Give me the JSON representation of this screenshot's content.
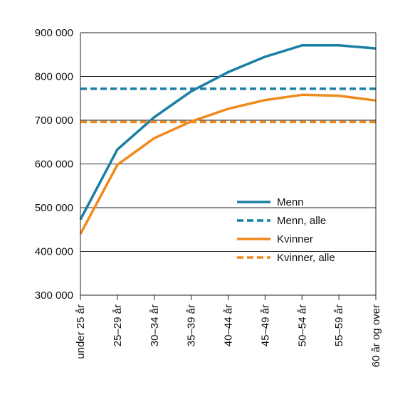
{
  "chart_data": {
    "type": "line",
    "title": "",
    "xlabel": "",
    "ylabel": "",
    "categories": [
      "under 25 år",
      "25–29 år",
      "30–34 år",
      "35–39 år",
      "40–44 år",
      "45–49 år",
      "50–54 år",
      "55–59 år",
      "60 år og over"
    ],
    "ylim": [
      300000,
      900000
    ],
    "y_ticks": [
      {
        "value": 300000,
        "label": "300 000"
      },
      {
        "value": 400000,
        "label": "400 000"
      },
      {
        "value": 500000,
        "label": "500 000"
      },
      {
        "value": 600000,
        "label": "600 000"
      },
      {
        "value": 700000,
        "label": "700 000"
      },
      {
        "value": 800000,
        "label": "800 000"
      },
      {
        "value": 900000,
        "label": "900 000"
      }
    ],
    "grid": "horizontal",
    "legend_position": "right",
    "series": [
      {
        "name": "Menn",
        "style": "solid",
        "color": "#1a7fa3",
        "values": [
          473000,
          633000,
          707000,
          766000,
          810000,
          845000,
          871000,
          871000,
          864000
        ]
      },
      {
        "name": "Menn, alle",
        "style": "dashed",
        "color": "#1a7fa3",
        "values": [
          772000,
          772000,
          772000,
          772000,
          772000,
          772000,
          772000,
          772000,
          772000
        ]
      },
      {
        "name": "Kvinner",
        "style": "solid",
        "color": "#f08a1c",
        "values": [
          440000,
          598000,
          659000,
          697000,
          726000,
          746000,
          758000,
          756000,
          745000
        ]
      },
      {
        "name": "Kvinner, alle",
        "style": "dashed",
        "color": "#f08a1c",
        "values": [
          696000,
          696000,
          696000,
          696000,
          696000,
          696000,
          696000,
          696000,
          696000
        ]
      }
    ]
  }
}
